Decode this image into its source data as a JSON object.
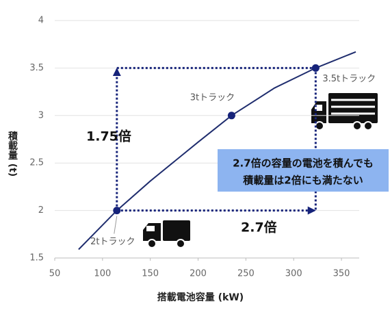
{
  "chart_data": {
    "type": "line",
    "x_label": "搭載電池容量 (kW)",
    "y_label": "積載量 (t)",
    "x": [
      75,
      115,
      150,
      200,
      235,
      280,
      323,
      365
    ],
    "values": [
      1.59,
      2.0,
      2.31,
      2.72,
      3.0,
      3.29,
      3.5,
      3.67
    ],
    "color": "#1f2d6e",
    "points": [
      {
        "x": 115,
        "y": 2,
        "label": "2tトラック"
      },
      {
        "x": 235,
        "y": 3,
        "label": "3tトラック"
      },
      {
        "x": 323,
        "y": 3.5,
        "label": "3.5tトラック"
      }
    ],
    "point_color": "#16237a",
    "annotations": [
      "1.75倍",
      "2.7倍",
      "2.7倍の容量の電池を積んでも",
      "積載量は2倍にも満たない"
    ],
    "box_color": "#8db4f0",
    "xlim": [
      50,
      365
    ],
    "ylim": [
      1.5,
      4
    ],
    "xticks": [
      50,
      100,
      150,
      200,
      250,
      300,
      350
    ],
    "yticks": [
      1.5,
      2,
      2.5,
      3,
      3.5,
      4
    ],
    "grid": true
  }
}
